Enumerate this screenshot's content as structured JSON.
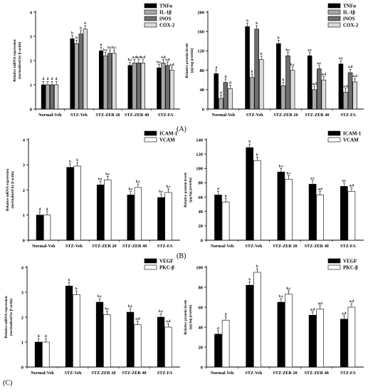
{
  "panel_labels": [
    "(A)",
    "(B)",
    "(C)"
  ],
  "colors": {
    "black": "#000000",
    "gray": "#a8a8a8",
    "darkgray": "#6e6e6e",
    "lightgray": "#dcdcdc",
    "white": "#ffffff"
  },
  "chart_data": [
    {
      "type": "bar",
      "categories": [
        "Normal-Veh",
        "STZ-Veh",
        "STZ-ZER 20",
        "STZ-ZER 40",
        "STZ-FA"
      ],
      "series": [
        {
          "name": "TNFα",
          "values": [
            1.0,
            2.9,
            2.4,
            1.8,
            1.7
          ],
          "letters": [
            "d",
            "b",
            "b",
            "b,c",
            "b,c"
          ],
          "fill": "black"
        },
        {
          "name": "IL-1β",
          "values": [
            1.0,
            2.7,
            2.2,
            1.9,
            1.9
          ],
          "letters": [
            "d",
            "b",
            "b,c",
            "a,d",
            "a,d"
          ],
          "fill": "gray"
        },
        {
          "name": "iNOS",
          "values": [
            1.0,
            3.1,
            2.3,
            1.9,
            1.8
          ],
          "letters": [
            "d",
            "b",
            "b,c",
            "a,d",
            "a,d"
          ],
          "fill": "darkgray"
        },
        {
          "name": "COX-2",
          "values": [
            1.0,
            3.3,
            2.3,
            1.9,
            1.6
          ],
          "letters": [
            "d",
            "b",
            "b,c",
            "a,d",
            "a,d"
          ],
          "fill": "lightgray"
        }
      ],
      "ylabel": "Relative mRNA expression\n(normalized by β-actin)",
      "ylim": [
        0,
        4
      ],
      "yticks": [
        0,
        1,
        2,
        3,
        4
      ],
      "legend": "top-right"
    },
    {
      "type": "bar",
      "categories": [
        "Normal-Veh",
        "STZ-Veh",
        "STZ-ZER 20",
        "STZ-ZER 40",
        "STZ-FA"
      ],
      "series": [
        {
          "name": "TNFα",
          "values": [
            73,
            170,
            135,
            110,
            93
          ],
          "letters": [
            "d",
            "b",
            "b",
            "a,c",
            "a,c"
          ],
          "fill": "black"
        },
        {
          "name": "IL-1β",
          "values": [
            22,
            65,
            48,
            40,
            35
          ],
          "letters": [
            "d",
            "b",
            "b",
            "a,d",
            "a,d"
          ],
          "fill": "gray"
        },
        {
          "name": "iNOS",
          "values": [
            55,
            165,
            110,
            83,
            75
          ],
          "letters": [
            "d",
            "b",
            "b,c",
            "a,c",
            "a,d"
          ],
          "fill": "darkgray"
        },
        {
          "name": "COX-2",
          "values": [
            42,
            102,
            80,
            60,
            56
          ],
          "letters": [
            "d",
            "b",
            "b,c",
            "a,d",
            "a,d"
          ],
          "fill": "lightgray"
        }
      ],
      "ylabel": "Relative protein levels\n(pg/mg protein)",
      "ylim": [
        0,
        200
      ],
      "yticks": [
        0,
        40,
        80,
        120,
        160,
        200
      ],
      "legend": "top-right"
    },
    {
      "type": "bar",
      "categories": [
        "Normal-Veh",
        "STZ-Veh",
        "STZ-ZER 20",
        "STZ-ZER 40",
        "STZ-FA"
      ],
      "series": [
        {
          "name": "ICAM-1",
          "values": [
            1.0,
            2.9,
            2.2,
            1.8,
            1.7
          ],
          "letters": [
            "d",
            "b",
            "b,c",
            "b,c",
            "b,c"
          ],
          "fill": "black"
        },
        {
          "name": "VCAM",
          "values": [
            1.0,
            2.95,
            2.4,
            2.1,
            1.9
          ],
          "letters": [
            "d",
            "b",
            "b,c",
            "b,c",
            "b,c"
          ],
          "fill": "white"
        }
      ],
      "ylabel": "Relative mRNA expression\n(normalized by β-actin)",
      "ylim": [
        0,
        4
      ],
      "yticks": [
        0,
        1,
        2,
        3,
        4
      ],
      "legend": "top-right"
    },
    {
      "type": "bar",
      "categories": [
        "Normal-Veh",
        "STZ-Veh",
        "STZ-ZER 20",
        "STZ-ZER 40",
        "STZ-FA"
      ],
      "series": [
        {
          "name": "ICAM-1",
          "values": [
            63,
            129,
            95,
            78,
            75
          ],
          "letters": [
            "d",
            "b",
            "b,c",
            "a,c",
            "a,c"
          ],
          "fill": "black"
        },
        {
          "name": "VCAM",
          "values": [
            53,
            111,
            85,
            63,
            68
          ],
          "letters": [
            "d",
            "b",
            "b,c",
            "a,d",
            "a,d"
          ],
          "fill": "white"
        }
      ],
      "ylabel": "Relative protein levels\n(pg/mg protein)",
      "ylim": [
        0,
        140
      ],
      "yticks": [
        0,
        20,
        40,
        60,
        80,
        100,
        120,
        140
      ],
      "legend": "top-right"
    },
    {
      "type": "bar",
      "categories": [
        "Normal-Veh",
        "STZ-Veh",
        "STZ-ZER 20",
        "STZ-ZER 40",
        "STZ-FA"
      ],
      "series": [
        {
          "name": "VEGF",
          "values": [
            1.0,
            3.25,
            2.6,
            2.2,
            2.0
          ],
          "letters": [
            "d",
            "b",
            "b,c",
            "b,c",
            "b,c"
          ],
          "fill": "black"
        },
        {
          "name": "PKC-β",
          "values": [
            1.0,
            2.9,
            2.1,
            1.7,
            1.6
          ],
          "letters": [
            "d",
            "b",
            "b,c",
            "a,d",
            "a,d"
          ],
          "fill": "white"
        }
      ],
      "ylabel": "Relative mRNA expression\n(normalized by β-actin)",
      "ylim": [
        0,
        4
      ],
      "yticks": [
        0,
        1,
        2,
        3,
        4
      ],
      "legend": "top-right"
    },
    {
      "type": "bar",
      "categories": [
        "Normal-Veh",
        "STZ-Veh",
        "STZ-ZER 20",
        "STZ-ZER 40",
        "STZ-FA"
      ],
      "series": [
        {
          "name": "VEGF",
          "values": [
            33,
            82,
            65,
            52,
            48
          ],
          "letters": [
            "d",
            "b",
            "b,c",
            "a,d",
            "a,d"
          ],
          "fill": "black"
        },
        {
          "name": "PKC-β",
          "values": [
            47,
            95,
            73,
            58,
            60
          ],
          "letters": [
            "d",
            "b",
            "b,c",
            "a,d",
            "a,d"
          ],
          "fill": "white"
        }
      ],
      "ylabel": "Relative protein levels\n(pg/mg protein)",
      "ylim": [
        0,
        100
      ],
      "yticks": [
        0,
        20,
        40,
        60,
        80,
        100
      ],
      "legend": "top-right"
    }
  ]
}
